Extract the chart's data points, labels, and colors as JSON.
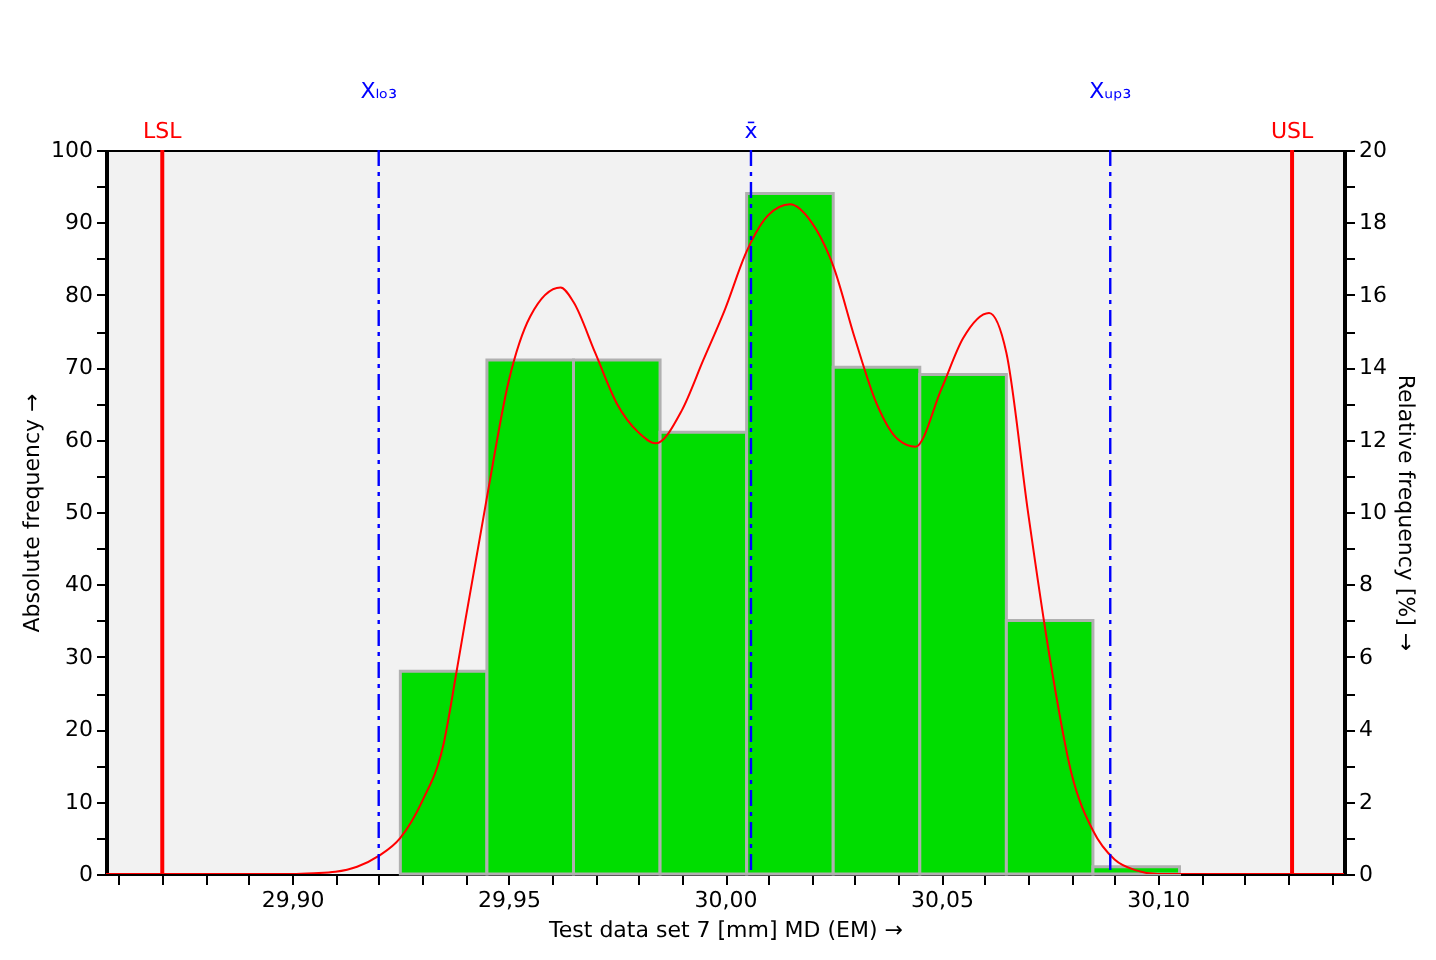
{
  "chart_data": {
    "type": "histogram",
    "xlabel": "Test data set 7 [mm]  MD (EM) →",
    "ylabel": "Absolute frequency →",
    "y2label": "Relative frequency  [%] →",
    "bins": [
      29.925,
      29.945,
      29.965,
      29.985,
      30.005,
      30.025,
      30.045,
      30.065,
      30.085,
      30.105
    ],
    "series": [
      {
        "type": "histogram",
        "color": "#00dd00",
        "values": [
          28,
          71,
          71,
          61,
          94,
          70,
          69,
          35,
          1
        ]
      },
      {
        "type": "line",
        "color": "#ff0000",
        "x": [
          29.857,
          29.9,
          29.905,
          29.91,
          29.915,
          29.92,
          29.925,
          29.93,
          29.935,
          29.938,
          29.94,
          29.945,
          29.95,
          29.955,
          29.962,
          29.965,
          29.97,
          29.975,
          29.98,
          29.984,
          29.99,
          29.995,
          30.0,
          30.005,
          30.01,
          30.015,
          30.02,
          30.025,
          30.03,
          30.035,
          30.04,
          30.044,
          30.05,
          30.055,
          30.061,
          30.065,
          30.07,
          30.075,
          30.08,
          30.085,
          30.09,
          30.095,
          30.1,
          30.143
        ],
        "values": [
          0,
          0,
          0.1,
          0.3,
          1,
          2.5,
          5,
          10,
          18,
          28,
          35,
          52,
          68,
          77,
          81,
          79,
          72,
          65,
          61,
          59.5,
          64,
          71,
          78,
          86,
          91,
          92.5,
          90,
          84,
          74,
          65,
          60,
          59,
          67,
          74,
          77.5,
          72,
          50,
          30,
          14,
          6,
          2,
          0.5,
          0,
          0
        ]
      }
    ],
    "xlim": [
      29.857,
      30.143
    ],
    "xticks": [
      {
        "value": 29.86,
        "label": null
      },
      {
        "value": 29.87,
        "label": null
      },
      {
        "value": 29.88,
        "label": null
      },
      {
        "value": 29.89,
        "label": null
      },
      {
        "value": 29.9,
        "label": "29,90"
      },
      {
        "value": 29.91,
        "label": null
      },
      {
        "value": 29.92,
        "label": null
      },
      {
        "value": 29.93,
        "label": null
      },
      {
        "value": 29.94,
        "label": null
      },
      {
        "value": 29.95,
        "label": "29,95"
      },
      {
        "value": 29.96,
        "label": null
      },
      {
        "value": 29.97,
        "label": null
      },
      {
        "value": 29.98,
        "label": null
      },
      {
        "value": 29.99,
        "label": null
      },
      {
        "value": 30.0,
        "label": "30,00"
      },
      {
        "value": 30.01,
        "label": null
      },
      {
        "value": 30.02,
        "label": null
      },
      {
        "value": 30.03,
        "label": null
      },
      {
        "value": 30.04,
        "label": null
      },
      {
        "value": 30.05,
        "label": "30,05"
      },
      {
        "value": 30.06,
        "label": null
      },
      {
        "value": 30.07,
        "label": null
      },
      {
        "value": 30.08,
        "label": null
      },
      {
        "value": 30.09,
        "label": null
      },
      {
        "value": 30.1,
        "label": "30,10"
      },
      {
        "value": 30.11,
        "label": null
      },
      {
        "value": 30.12,
        "label": null
      },
      {
        "value": 30.13,
        "label": null
      },
      {
        "value": 30.14,
        "label": null
      }
    ],
    "ylim": [
      0,
      100
    ],
    "yticks": [
      0,
      {
        "value": 5,
        "label": null
      },
      10,
      {
        "value": 15,
        "label": null
      },
      20,
      {
        "value": 25,
        "label": null
      },
      30,
      {
        "value": 35,
        "label": null
      },
      40,
      {
        "value": 45,
        "label": null
      },
      50,
      {
        "value": 55,
        "label": null
      },
      60,
      {
        "value": 65,
        "label": null
      },
      70,
      {
        "value": 75,
        "label": null
      },
      80,
      {
        "value": 85,
        "label": null
      },
      90,
      {
        "value": 95,
        "label": null
      },
      100
    ],
    "y2lim": [
      0,
      20
    ],
    "y2ticks": [
      0,
      {
        "value": 1,
        "label": null
      },
      2,
      {
        "value": 3,
        "label": null
      },
      4,
      {
        "value": 5,
        "label": null
      },
      6,
      {
        "value": 7,
        "label": null
      },
      8,
      {
        "value": 9,
        "label": null
      },
      10,
      {
        "value": 11,
        "label": null
      },
      12,
      {
        "value": 13,
        "label": null
      },
      14,
      {
        "value": 15,
        "label": null
      },
      16,
      {
        "value": 17,
        "label": null
      },
      18,
      {
        "value": 19,
        "label": null
      },
      20
    ],
    "ref_lines": [
      {
        "axis": "x",
        "value": 29.87,
        "label": "LSL",
        "color": "#ff0000",
        "line_style": "solid"
      },
      {
        "axis": "x",
        "value": 29.92,
        "label": "Xₗₒ₃",
        "color": "#0000ff",
        "line_style": "dashed"
      },
      {
        "axis": "x",
        "value": 30.006,
        "label": "x̄",
        "color": "#0000ff",
        "line_style": "dashed"
      },
      {
        "axis": "x",
        "value": 30.089,
        "label": "Xᵤₚ₃",
        "color": "#0000ff",
        "line_style": "dashed"
      },
      {
        "axis": "x",
        "value": 30.131,
        "label": "USL",
        "color": "#ff0000",
        "line_style": "solid"
      }
    ],
    "grid": false
  }
}
